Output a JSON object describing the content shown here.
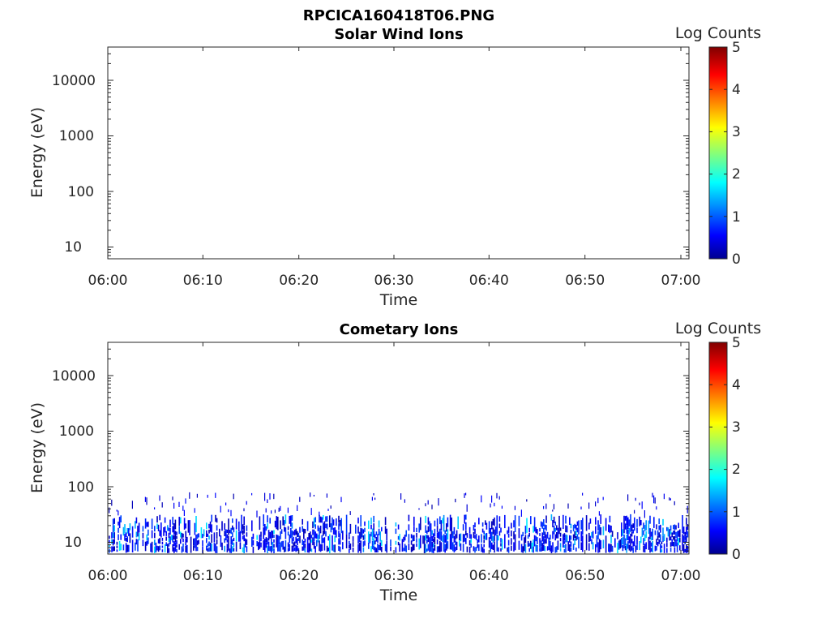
{
  "figure_title": "RPCICA160418T06.PNG",
  "chart_data": [
    {
      "type": "heatmap",
      "title": "Solar Wind Ions",
      "xlabel": "Time",
      "ylabel": "Energy (eV)",
      "x_tick_labels": [
        "06:00",
        "06:10",
        "06:20",
        "06:30",
        "06:40",
        "06:50",
        "07:00"
      ],
      "y_tick_labels": [
        "10",
        "100",
        "1000",
        "10000"
      ],
      "y_scale": "log",
      "ylim": [
        6,
        40000
      ],
      "colorbar": {
        "label": "Log Counts",
        "tick_labels": [
          "0",
          "1",
          "2",
          "3",
          "4",
          "5"
        ],
        "range": [
          0,
          5
        ],
        "colormap": "jet"
      },
      "data_summary": "no counts recorded"
    },
    {
      "type": "heatmap",
      "title": "Cometary Ions",
      "xlabel": "Time",
      "ylabel": "Energy (eV)",
      "x_tick_labels": [
        "06:00",
        "06:10",
        "06:20",
        "06:30",
        "06:40",
        "06:50",
        "07:00"
      ],
      "y_tick_labels": [
        "10",
        "100",
        "1000",
        "10000"
      ],
      "y_scale": "log",
      "ylim": [
        6,
        40000
      ],
      "colorbar": {
        "label": "Log Counts",
        "tick_labels": [
          "0",
          "1",
          "2",
          "3",
          "4",
          "5"
        ],
        "range": [
          0,
          5
        ],
        "colormap": "jet"
      },
      "data_summary": "counts concentrated from about 6 to 30 eV across the whole hour, log counts mostly 0.3 to 1.7, sparse low-count speckles up to about 80 eV"
    }
  ]
}
